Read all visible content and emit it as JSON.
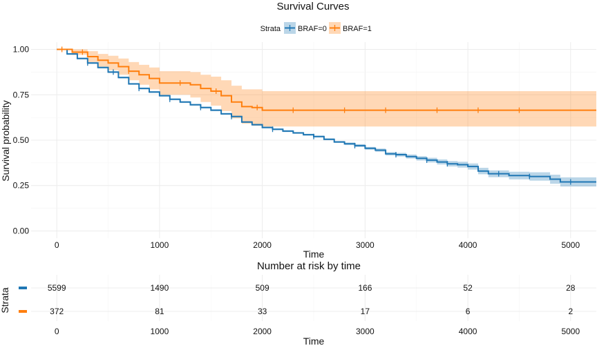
{
  "chart_data": {
    "type": "line",
    "title": "Survival Curves",
    "xlabel": "Time",
    "ylabel": "Survival probability",
    "xlim": [
      -250,
      5250
    ],
    "ylim": [
      -0.04,
      1.04
    ],
    "x_ticks": [
      0,
      1000,
      2000,
      3000,
      4000,
      5000
    ],
    "y_ticks": [
      0,
      0.25,
      0.5,
      0.75,
      1.0
    ],
    "y_tick_labels": [
      "0.00",
      "0.25",
      "0.50",
      "0.75",
      "1.00"
    ],
    "x_tick_labels": [
      "0",
      "1000",
      "2000",
      "3000",
      "4000",
      "5000"
    ],
    "grid": true,
    "legend": {
      "title": "Strata",
      "position": "top"
    },
    "series": [
      {
        "name": "BRAF=0",
        "color": "#1f77b4",
        "points": [
          [
            0,
            1.0
          ],
          [
            100,
            0.975
          ],
          [
            200,
            0.95
          ],
          [
            300,
            0.925
          ],
          [
            400,
            0.9
          ],
          [
            500,
            0.875
          ],
          [
            600,
            0.845
          ],
          [
            700,
            0.81
          ],
          [
            800,
            0.785
          ],
          [
            900,
            0.765
          ],
          [
            1000,
            0.745
          ],
          [
            1100,
            0.725
          ],
          [
            1200,
            0.71
          ],
          [
            1300,
            0.695
          ],
          [
            1400,
            0.68
          ],
          [
            1500,
            0.665
          ],
          [
            1600,
            0.645
          ],
          [
            1700,
            0.63
          ],
          [
            1800,
            0.6
          ],
          [
            1900,
            0.585
          ],
          [
            2000,
            0.57
          ],
          [
            2100,
            0.56
          ],
          [
            2200,
            0.55
          ],
          [
            2300,
            0.54
          ],
          [
            2400,
            0.53
          ],
          [
            2500,
            0.52
          ],
          [
            2600,
            0.505
          ],
          [
            2700,
            0.49
          ],
          [
            2800,
            0.48
          ],
          [
            2900,
            0.47
          ],
          [
            3000,
            0.455
          ],
          [
            3100,
            0.445
          ],
          [
            3200,
            0.425
          ],
          [
            3300,
            0.42
          ],
          [
            3400,
            0.41
          ],
          [
            3500,
            0.4
          ],
          [
            3600,
            0.39
          ],
          [
            3700,
            0.38
          ],
          [
            3800,
            0.37
          ],
          [
            3900,
            0.365
          ],
          [
            4000,
            0.355
          ],
          [
            4100,
            0.33
          ],
          [
            4200,
            0.315
          ],
          [
            4400,
            0.305
          ],
          [
            4600,
            0.3
          ],
          [
            4800,
            0.285
          ],
          [
            4900,
            0.27
          ],
          [
            5250,
            0.27
          ]
        ],
        "ci_lower": [
          1.0,
          0.97,
          0.945,
          0.92,
          0.895,
          0.87,
          0.84,
          0.805,
          0.78,
          0.76,
          0.74,
          0.72,
          0.705,
          0.69,
          0.675,
          0.66,
          0.64,
          0.625,
          0.595,
          0.58,
          0.565,
          0.555,
          0.545,
          0.535,
          0.525,
          0.515,
          0.5,
          0.485,
          0.473,
          0.462,
          0.447,
          0.436,
          0.416,
          0.41,
          0.399,
          0.388,
          0.377,
          0.366,
          0.355,
          0.349,
          0.338,
          0.312,
          0.296,
          0.284,
          0.277,
          0.26,
          0.245,
          0.245
        ],
        "ci_upper": [
          1.0,
          0.98,
          0.955,
          0.93,
          0.905,
          0.88,
          0.85,
          0.815,
          0.79,
          0.77,
          0.75,
          0.73,
          0.715,
          0.7,
          0.685,
          0.67,
          0.65,
          0.635,
          0.605,
          0.59,
          0.575,
          0.565,
          0.555,
          0.545,
          0.535,
          0.525,
          0.51,
          0.495,
          0.487,
          0.478,
          0.463,
          0.454,
          0.434,
          0.43,
          0.421,
          0.412,
          0.403,
          0.394,
          0.385,
          0.381,
          0.372,
          0.348,
          0.334,
          0.326,
          0.323,
          0.31,
          0.295,
          0.295
        ],
        "censor_x": [
          300,
          550,
          800,
          1100,
          1400,
          1700,
          2100,
          2500,
          2900,
          3300,
          3600,
          3800,
          4300,
          4600,
          5000
        ]
      },
      {
        "name": "BRAF=1",
        "color": "#ff7f0e",
        "points": [
          [
            0,
            1.0
          ],
          [
            150,
            0.985
          ],
          [
            300,
            0.96
          ],
          [
            400,
            0.94
          ],
          [
            500,
            0.925
          ],
          [
            600,
            0.905
          ],
          [
            700,
            0.88
          ],
          [
            800,
            0.86
          ],
          [
            900,
            0.84
          ],
          [
            1000,
            0.815
          ],
          [
            1300,
            0.805
          ],
          [
            1400,
            0.785
          ],
          [
            1500,
            0.77
          ],
          [
            1600,
            0.745
          ],
          [
            1700,
            0.71
          ],
          [
            1800,
            0.685
          ],
          [
            1900,
            0.68
          ],
          [
            2000,
            0.665
          ],
          [
            5250,
            0.665
          ]
        ],
        "ci_lower": [
          1.0,
          0.97,
          0.93,
          0.905,
          0.885,
          0.86,
          0.83,
          0.805,
          0.78,
          0.75,
          0.735,
          0.71,
          0.69,
          0.66,
          0.62,
          0.59,
          0.58,
          0.575,
          0.575
        ],
        "ci_upper": [
          1.0,
          1.0,
          0.99,
          0.975,
          0.965,
          0.95,
          0.93,
          0.915,
          0.9,
          0.88,
          0.875,
          0.86,
          0.85,
          0.83,
          0.8,
          0.78,
          0.78,
          0.77,
          0.77
        ],
        "censor_x": [
          50,
          250,
          700,
          1200,
          1550,
          1950,
          2300,
          2800,
          3200,
          3700,
          4100,
          4500
        ]
      }
    ]
  },
  "risk_table": {
    "title": "Number at risk by time",
    "ylabel": "Strata",
    "xlabel": "Time",
    "times": [
      0,
      1000,
      2000,
      3000,
      4000,
      5000
    ],
    "time_labels": [
      "0",
      "1000",
      "2000",
      "3000",
      "4000",
      "5000"
    ],
    "rows": [
      {
        "color": "#1f77b4",
        "counts": [
          "5599",
          "1490",
          "509",
          "166",
          "52",
          "28"
        ]
      },
      {
        "color": "#ff7f0e",
        "counts": [
          "372",
          "81",
          "33",
          "17",
          "6",
          "2"
        ]
      }
    ]
  }
}
